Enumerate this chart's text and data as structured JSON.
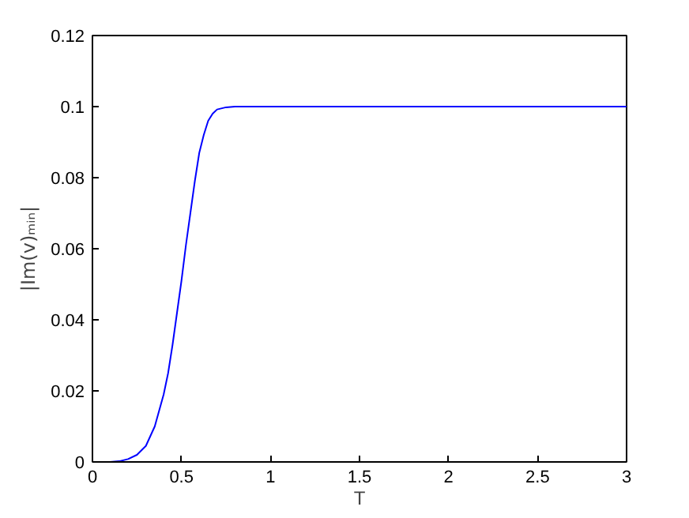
{
  "chart_data": {
    "type": "line",
    "xlabel": "T",
    "ylabel": "|Im(v)ₘᵢₙ|",
    "x": [
      0,
      0.1,
      0.15,
      0.2,
      0.25,
      0.3,
      0.35,
      0.4,
      0.425,
      0.45,
      0.475,
      0.5,
      0.525,
      0.55,
      0.575,
      0.6,
      0.625,
      0.65,
      0.675,
      0.7,
      0.75,
      0.8,
      0.9,
      1,
      1.5,
      2,
      2.5,
      3
    ],
    "series": [
      {
        "color": "#0000ff",
        "values": [
          0,
          0,
          0.0002,
          0.0008,
          0.002,
          0.0045,
          0.01,
          0.019,
          0.025,
          0.033,
          0.042,
          0.051,
          0.061,
          0.07,
          0.079,
          0.087,
          0.092,
          0.096,
          0.098,
          0.0992,
          0.0998,
          0.1,
          0.1,
          0.1,
          0.1,
          0.1,
          0.1,
          0.1
        ]
      }
    ],
    "xlim": [
      0,
      3
    ],
    "ylim": [
      0,
      0.12
    ],
    "xticks": [
      0,
      0.5,
      1,
      1.5,
      2,
      2.5,
      3
    ],
    "yticks": [
      0,
      0.02,
      0.04,
      0.06,
      0.08,
      0.1,
      0.12
    ],
    "grid": false
  }
}
